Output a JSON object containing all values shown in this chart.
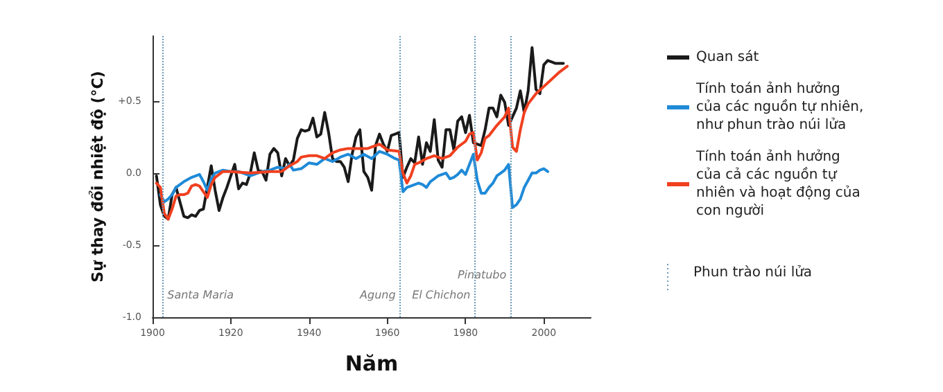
{
  "chart_data": {
    "type": "line",
    "xlabel": "Năm",
    "ylabel": "Sự thay đổi nhiệt độ (°C)",
    "xlim": [
      1900,
      2012
    ],
    "xticks": [
      1900,
      1920,
      1940,
      1960,
      1980,
      2000
    ],
    "ylim": [
      -1.0,
      0.95
    ],
    "yticks": [
      {
        "value": -1.0,
        "label": "-1.0"
      },
      {
        "value": -0.5,
        "label": "-0.5"
      },
      {
        "value": 0,
        "label": "0.0"
      },
      {
        "value": 0.5,
        "label": "+0.5"
      }
    ],
    "grid": false,
    "legend": "right",
    "marker": "none",
    "line_style": "solid",
    "series": [
      {
        "name": "Quan sát",
        "color": "#1a1a1a",
        "x": [
          1901,
          1902,
          1903,
          1904,
          1905,
          1906,
          1907,
          1908,
          1909,
          1910,
          1911,
          1912,
          1913,
          1914,
          1915,
          1916,
          1917,
          1918,
          1919,
          1920,
          1921,
          1922,
          1923,
          1924,
          1925,
          1926,
          1927,
          1928,
          1929,
          1930,
          1931,
          1932,
          1933,
          1934,
          1935,
          1936,
          1937,
          1938,
          1939,
          1940,
          1941,
          1942,
          1943,
          1944,
          1945,
          1946,
          1947,
          1948,
          1949,
          1950,
          1951,
          1952,
          1953,
          1954,
          1955,
          1956,
          1957,
          1958,
          1959,
          1960,
          1961,
          1962,
          1963,
          1964,
          1965,
          1966,
          1967,
          1968,
          1969,
          1970,
          1971,
          1972,
          1973,
          1974,
          1975,
          1976,
          1977,
          1978,
          1979,
          1980,
          1981,
          1982,
          1983,
          1984,
          1985,
          1986,
          1987,
          1988,
          1989,
          1990,
          1991,
          1992,
          1993,
          1994,
          1995,
          1996,
          1997,
          1998,
          1999,
          2000,
          2001,
          2002,
          2003,
          2004,
          2005
        ],
        "values": [
          -0.02,
          -0.22,
          -0.3,
          -0.32,
          -0.15,
          -0.1,
          -0.2,
          -0.3,
          -0.31,
          -0.29,
          -0.3,
          -0.26,
          -0.25,
          -0.1,
          0.05,
          -0.12,
          -0.26,
          -0.17,
          -0.1,
          -0.02,
          0.06,
          -0.11,
          -0.07,
          -0.08,
          0.0,
          0.14,
          0.02,
          0.01,
          -0.05,
          0.13,
          0.17,
          0.14,
          -0.02,
          0.1,
          0.05,
          0.09,
          0.24,
          0.3,
          0.29,
          0.3,
          0.38,
          0.25,
          0.27,
          0.42,
          0.28,
          0.1,
          0.08,
          0.08,
          0.04,
          -0.06,
          0.13,
          0.25,
          0.3,
          0.01,
          -0.03,
          -0.12,
          0.19,
          0.27,
          0.2,
          0.15,
          0.26,
          0.27,
          0.28,
          -0.03,
          0.04,
          0.1,
          0.07,
          0.25,
          0.06,
          0.21,
          0.15,
          0.37,
          0.09,
          0.04,
          0.3,
          0.3,
          0.16,
          0.36,
          0.39,
          0.28,
          0.4,
          0.21,
          0.2,
          0.19,
          0.3,
          0.45,
          0.45,
          0.39,
          0.54,
          0.49,
          0.33,
          0.39,
          0.45,
          0.57,
          0.42,
          0.57,
          0.87,
          0.58,
          0.55,
          0.75,
          0.78,
          0.77,
          0.76,
          0.76,
          0.76
        ]
      },
      {
        "name": "Tính toán ảnh hưởng của các nguồn tự nhiên, như phun trào núi lửa",
        "color": "#1f8ad8",
        "x": [
          1902,
          1903,
          1904,
          1905,
          1906,
          1908,
          1910,
          1912,
          1913,
          1914,
          1915,
          1916,
          1918,
          1920,
          1922,
          1925,
          1928,
          1930,
          1932,
          1934,
          1935,
          1936,
          1938,
          1940,
          1942,
          1944,
          1946,
          1948,
          1950,
          1952,
          1954,
          1956,
          1958,
          1960,
          1962,
          1963,
          1964,
          1965,
          1966,
          1968,
          1969,
          1970,
          1971,
          1973,
          1975,
          1976,
          1977,
          1978,
          1979,
          1980,
          1982,
          1983,
          1984,
          1985,
          1986,
          1987,
          1988,
          1989,
          1990,
          1991,
          1992,
          1993,
          1994,
          1995,
          1996,
          1997,
          1998,
          1999,
          2000,
          2001
        ],
        "values": [
          -0.15,
          -0.2,
          -0.18,
          -0.15,
          -0.1,
          -0.06,
          -0.03,
          -0.01,
          -0.06,
          -0.12,
          -0.04,
          0.0,
          0.02,
          0.01,
          0.01,
          -0.02,
          0.01,
          0.02,
          0.04,
          0.03,
          0.06,
          0.02,
          0.03,
          0.07,
          0.06,
          0.1,
          0.08,
          0.11,
          0.13,
          0.1,
          0.13,
          0.1,
          0.15,
          0.13,
          0.1,
          0.09,
          -0.13,
          -0.1,
          -0.09,
          -0.07,
          -0.08,
          -0.1,
          -0.06,
          -0.02,
          0.0,
          -0.04,
          -0.03,
          -0.01,
          0.02,
          -0.01,
          0.13,
          -0.05,
          -0.14,
          -0.14,
          -0.1,
          -0.07,
          -0.02,
          0.0,
          0.02,
          0.06,
          -0.24,
          -0.22,
          -0.18,
          -0.1,
          -0.05,
          0.0,
          0.0,
          0.02,
          0.03,
          0.01
        ]
      },
      {
        "name": "Tính toán ảnh hưởng của cả các nguồn tự nhiên và hoạt động của con người",
        "color": "#f0401f",
        "x": [
          1901,
          1902,
          1903,
          1904,
          1905,
          1906,
          1907,
          1908,
          1909,
          1910,
          1911,
          1912,
          1913,
          1914,
          1915,
          1916,
          1917,
          1918,
          1920,
          1925,
          1930,
          1933,
          1935,
          1937,
          1938,
          1940,
          1942,
          1944,
          1946,
          1948,
          1950,
          1955,
          1958,
          1960,
          1963,
          1964,
          1965,
          1966,
          1967,
          1968,
          1970,
          1972,
          1974,
          1976,
          1978,
          1980,
          1981,
          1982,
          1983,
          1984,
          1985,
          1986,
          1988,
          1990,
          1991,
          1992,
          1993,
          1994,
          1995,
          1996,
          1998,
          2000,
          2002,
          2004,
          2006
        ],
        "values": [
          -0.07,
          -0.1,
          -0.28,
          -0.32,
          -0.25,
          -0.16,
          -0.15,
          -0.15,
          -0.14,
          -0.09,
          -0.08,
          -0.09,
          -0.13,
          -0.17,
          -0.08,
          -0.03,
          -0.01,
          0.01,
          0.01,
          0.0,
          0.01,
          0.01,
          0.05,
          0.08,
          0.11,
          0.12,
          0.12,
          0.1,
          0.14,
          0.16,
          0.17,
          0.17,
          0.2,
          0.16,
          0.15,
          0.0,
          -0.07,
          -0.02,
          0.06,
          0.07,
          0.1,
          0.12,
          0.1,
          0.12,
          0.18,
          0.22,
          0.27,
          0.28,
          0.09,
          0.14,
          0.24,
          0.26,
          0.33,
          0.39,
          0.45,
          0.18,
          0.15,
          0.3,
          0.42,
          0.48,
          0.55,
          0.6,
          0.65,
          0.7,
          0.74
        ]
      }
    ],
    "ref_lines": [
      {
        "axis": "x",
        "value": 1902.7,
        "label": "Santa Maria",
        "color": "#6b9bb8",
        "line_style": "dotted"
      },
      {
        "axis": "x",
        "value": 1963.2,
        "label": "Agung",
        "color": "#6b9bb8",
        "line_style": "dotted"
      },
      {
        "axis": "x",
        "value": 1982.3,
        "label": "El Chichon",
        "color": "#6b9bb8",
        "line_style": "dotted"
      },
      {
        "axis": "x",
        "value": 1991.5,
        "label": "Pinatubo",
        "color": "#6b9bb8",
        "line_style": "dotted"
      }
    ],
    "annotations": [
      "Phun trào núi lửa"
    ]
  }
}
